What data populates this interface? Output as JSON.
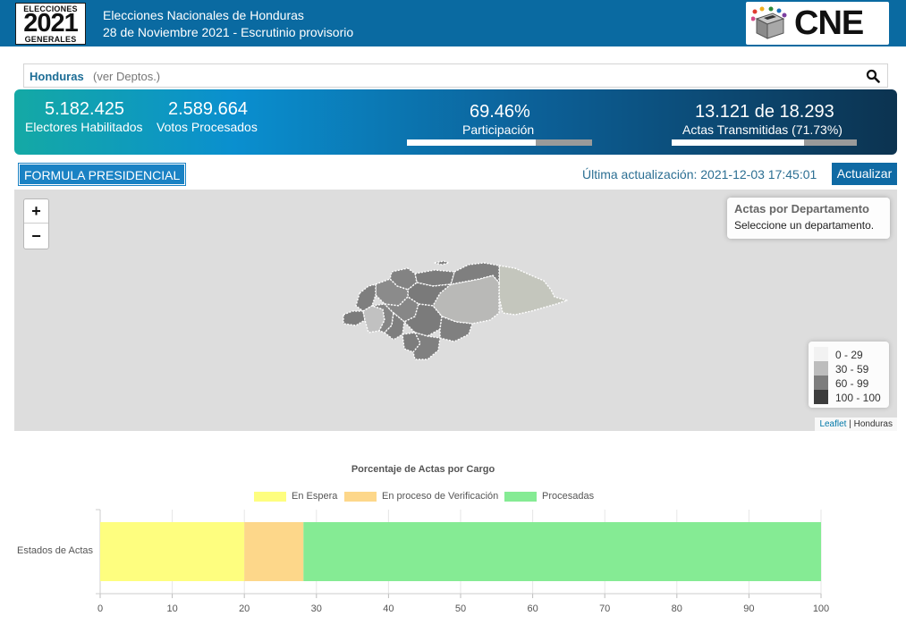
{
  "header": {
    "logo_line1": "ELECCIONES",
    "logo_line2": "2021",
    "logo_line3": "GENERALES",
    "title": "Elecciones Nacionales de Honduras",
    "subtitle": "28 de Noviembre 2021 - Escrutinio provisorio",
    "brand": "CNE"
  },
  "search": {
    "country": "Honduras",
    "link": "(ver Deptos.)",
    "icon": "search-icon"
  },
  "stats": {
    "electores_value": "5.182.425",
    "electores_label": "Electores Habilitados",
    "votos_value": "2.589.664",
    "votos_label": "Votos Procesados",
    "participacion_value": "69.46%",
    "participacion_label": "Participación",
    "participacion_fraction": 0.6946,
    "actas_value": "13.121 de 18.293",
    "actas_label": "Actas Transmitidas (71.73%)",
    "actas_fraction": 0.7173
  },
  "section": {
    "formula": "FORMULA PRESIDENCIAL",
    "updated": "Última actualización: 2021-12-03 17:45:01",
    "update_button": "Actualizar"
  },
  "map": {
    "zoom_in": "+",
    "zoom_out": "−",
    "info_title": "Actas por Departamento",
    "info_subtitle": "Seleccione un departamento.",
    "legend": [
      {
        "label": "0 - 29",
        "color": "#f2f2f2"
      },
      {
        "label": "30 - 59",
        "color": "#bdbdbd"
      },
      {
        "label": "60 - 99",
        "color": "#7d7d7d"
      },
      {
        "label": "100 - 100",
        "color": "#3c3c3c"
      }
    ],
    "attribution_link": "Leaflet",
    "attribution_text": "| Honduras"
  },
  "chart_data": {
    "type": "bar",
    "orientation": "horizontal",
    "stacked": true,
    "title": "Porcentaje de Actas por Cargo",
    "categories": [
      "Estados de Actas"
    ],
    "series": [
      {
        "name": "En Espera",
        "values": [
          20
        ],
        "color": "#fefe7f"
      },
      {
        "name": "En proceso de Verificación",
        "values": [
          8.2
        ],
        "color": "#fdd78a"
      },
      {
        "name": "Procesadas",
        "values": [
          71.8
        ],
        "color": "#85eb94"
      }
    ],
    "xlim": [
      0,
      100
    ],
    "xticks": [
      "0",
      "10",
      "20",
      "30",
      "40",
      "50",
      "60",
      "70",
      "80",
      "90",
      "100"
    ],
    "legend_position": "top",
    "grid": true
  }
}
